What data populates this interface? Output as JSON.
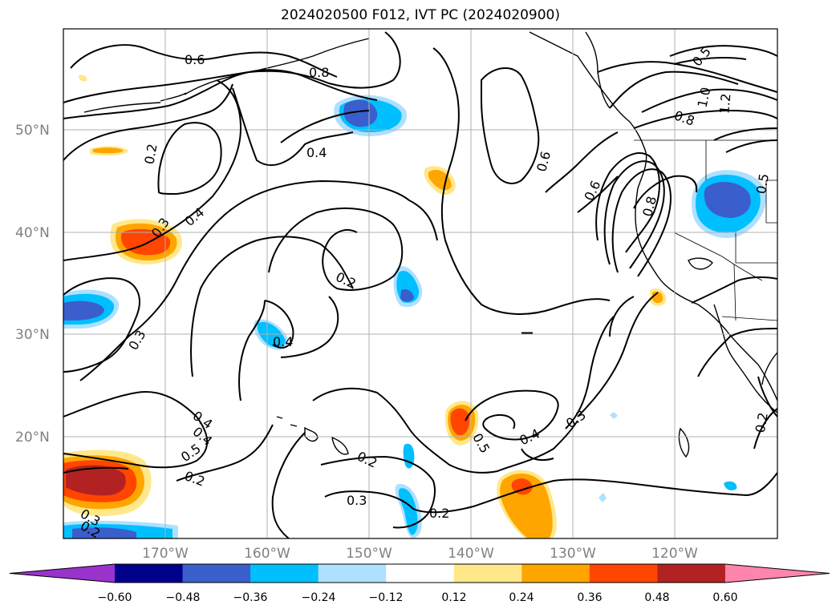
{
  "title": "2024020500 F012, IVT PC (2024020900)",
  "lat_labels": [
    "50°N",
    "40°N",
    "30°N",
    "20°N"
  ],
  "lon_labels": [
    "170°W",
    "160°W",
    "150°W",
    "140°W",
    "130°W",
    "120°W"
  ],
  "colorbar": {
    "tick_labels": [
      "−0.60",
      "−0.48",
      "−0.36",
      "−0.24",
      "−0.12",
      "0.12",
      "0.24",
      "0.36",
      "0.48",
      "0.60"
    ],
    "colors": [
      "#9933cc",
      "#00008b",
      "#3a5fcd",
      "#00bfff",
      "#aee0ff",
      "#ffffff",
      "#ffe88a",
      "#ffa500",
      "#ff4500",
      "#b22222",
      "#ff85ad"
    ]
  },
  "contour_labels": [
    "0.6",
    "0.8",
    "0.5",
    "1.0",
    "1.2",
    "0.2",
    "0.4",
    "0.8",
    "0.4",
    "0.3",
    "0.4",
    "0.6",
    "0.6",
    "0.8",
    "0.5",
    "0.2",
    "0.3",
    "0.4",
    "0.4",
    "0.5",
    "0.2",
    "0.2",
    "0.3",
    "0.5",
    "0.4",
    "0.3",
    "0.2",
    "0.3",
    "0.2",
    "0.2"
  ]
}
